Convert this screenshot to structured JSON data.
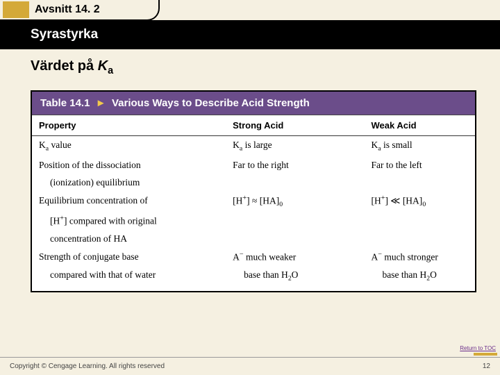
{
  "header": {
    "section_label": "Avsnitt 14. 2",
    "subtitle": "Syrastyrka"
  },
  "page_title_pre": "Värdet på ",
  "page_title_ital": "K",
  "page_title_sub": "a",
  "table": {
    "title_label": "Table 14.1",
    "title_rest": "Various Ways to Describe Acid Strength",
    "headers": {
      "c1": "Property",
      "c2": "Strong Acid",
      "c3": "Weak Acid"
    },
    "rows": [
      {
        "c1": "K<sub class='sub'>a</sub> value",
        "c2": "<span class='ital'>K</span><sub class='sub'>a</sub> is large",
        "c3": "<span class='ital'>K</span><sub class='sub'>a</sub> is small"
      },
      {
        "c1": "Position of the dissociation",
        "c2": "Far to the right",
        "c3": "Far to the left"
      },
      {
        "c1_indent": true,
        "c1": "(ionization) equilibrium",
        "c2": "",
        "c3": ""
      },
      {
        "c1": "Equilibrium concentration of",
        "c2": "[H<sup class='sup'>+</sup>] ≈ [HA]<sub class='sub'>0</sub>",
        "c3": "[H<sup class='sup'>+</sup>] ≪ [HA]<sub class='sub'>0</sub>"
      },
      {
        "c1_indent": true,
        "c1": "[H<sup class='sup'>+</sup>] compared with original",
        "c2": "",
        "c3": ""
      },
      {
        "c1_indent": true,
        "c1": "concentration of HA",
        "c2": "",
        "c3": ""
      },
      {
        "c1": "Strength of conjugate base",
        "c2": "A<sup class='sup'>−</sup> much weaker",
        "c3": "A<sup class='sup'>−</sup> much stronger"
      },
      {
        "c1_indent": true,
        "c1": "compared with that of water",
        "c2_indent": true,
        "c2": "base than H<sub class='sub'>2</sub>O",
        "c3_indent": true,
        "c3": "base than H<sub class='sub'>2</sub>O",
        "last": true
      }
    ]
  },
  "footer": {
    "return_link": "Return to TOC",
    "copyright": "Copyright © Cengage Learning. All rights reserved",
    "page_num": "12"
  }
}
